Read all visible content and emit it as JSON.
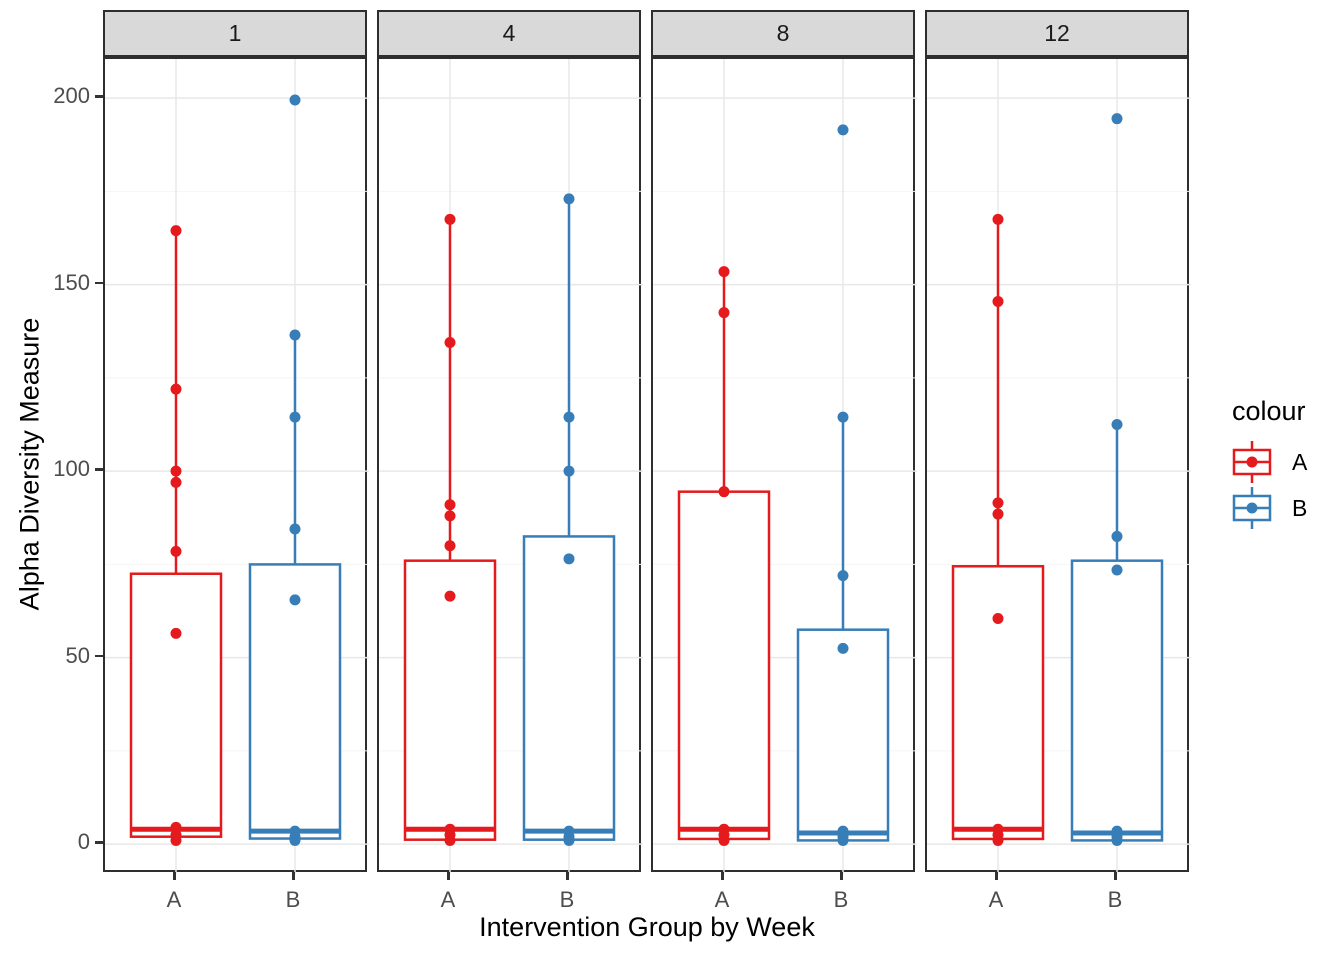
{
  "chart_data": {
    "type": "boxplot",
    "title": "",
    "xlabel": "Intervention Group by Week",
    "ylabel": "Alpha Diversity Measure",
    "x_categories": [
      "A",
      "B"
    ],
    "y_ticks": [
      0,
      50,
      100,
      150,
      200
    ],
    "y_minor_gridlines": [
      25,
      75,
      125,
      175
    ],
    "ylim": [
      -8,
      210.5
    ],
    "grid": {
      "major_color": "#e8e8e8",
      "minor_color": "#f4f4f4"
    },
    "panel": {
      "border_color": "#2e2e2e",
      "strip_fill": "#d9d9d9",
      "background": "#ffffff"
    },
    "axis_text_color": "#4d4d4d",
    "legend": {
      "title": "colour",
      "position": "right",
      "entries": [
        {
          "label": "A",
          "color": "#E41A1C"
        },
        {
          "label": "B",
          "color": "#377EB8"
        }
      ]
    },
    "facets": [
      {
        "label": "1",
        "groups": [
          {
            "category": "A",
            "color": "#E41A1C",
            "box": {
              "whisker_high": 164.5,
              "q3": 72.5,
              "median": 4,
              "q1": 2,
              "whisker_low": 1
            },
            "points": [
              164.5,
              122,
              100,
              97,
              78.5,
              56.5,
              4.5,
              2.5,
              1
            ]
          },
          {
            "category": "B",
            "color": "#377EB8",
            "box": {
              "whisker_high": 136.5,
              "q3": 75,
              "median": 3.5,
              "q1": 1.5,
              "whisker_low": 1
            },
            "points": [
              199.5,
              136.5,
              114.5,
              84.5,
              65.5,
              3.5,
              2,
              1
            ]
          }
        ]
      },
      {
        "label": "4",
        "groups": [
          {
            "category": "A",
            "color": "#E41A1C",
            "box": {
              "whisker_high": 167.5,
              "q3": 76,
              "median": 4,
              "q1": 1.2,
              "whisker_low": 0.8
            },
            "points": [
              167.5,
              134.5,
              91,
              88,
              80,
              66.5,
              4,
              2.5,
              1
            ]
          },
          {
            "category": "B",
            "color": "#377EB8",
            "box": {
              "whisker_high": 173,
              "q3": 82.5,
              "median": 3.5,
              "q1": 1.2,
              "whisker_low": 0.8
            },
            "points": [
              173,
              114.5,
              100,
              76.5,
              3.5,
              2,
              1
            ]
          }
        ]
      },
      {
        "label": "8",
        "groups": [
          {
            "category": "A",
            "color": "#E41A1C",
            "box": {
              "whisker_high": 153.5,
              "q3": 94.5,
              "median": 4,
              "q1": 1.4,
              "whisker_low": 0.8
            },
            "points": [
              153.5,
              142.5,
              94.5,
              4,
              2.5,
              1
            ]
          },
          {
            "category": "B",
            "color": "#377EB8",
            "box": {
              "whisker_high": 114.5,
              "q3": 57.5,
              "median": 3,
              "q1": 1,
              "whisker_low": 0.6
            },
            "points": [
              191.5,
              114.5,
              72,
              52.5,
              3.5,
              2,
              1
            ]
          }
        ]
      },
      {
        "label": "12",
        "groups": [
          {
            "category": "A",
            "color": "#E41A1C",
            "box": {
              "whisker_high": 167.5,
              "q3": 74.5,
              "median": 4,
              "q1": 1.4,
              "whisker_low": 0.8
            },
            "points": [
              167.5,
              145.5,
              91.5,
              88.5,
              60.5,
              4,
              2.5,
              1
            ]
          },
          {
            "category": "B",
            "color": "#377EB8",
            "box": {
              "whisker_high": 112.5,
              "q3": 76,
              "median": 3,
              "q1": 1,
              "whisker_low": 0.6
            },
            "points": [
              194.5,
              112.5,
              82.5,
              73.5,
              3.5,
              2,
              1
            ]
          }
        ]
      }
    ]
  }
}
